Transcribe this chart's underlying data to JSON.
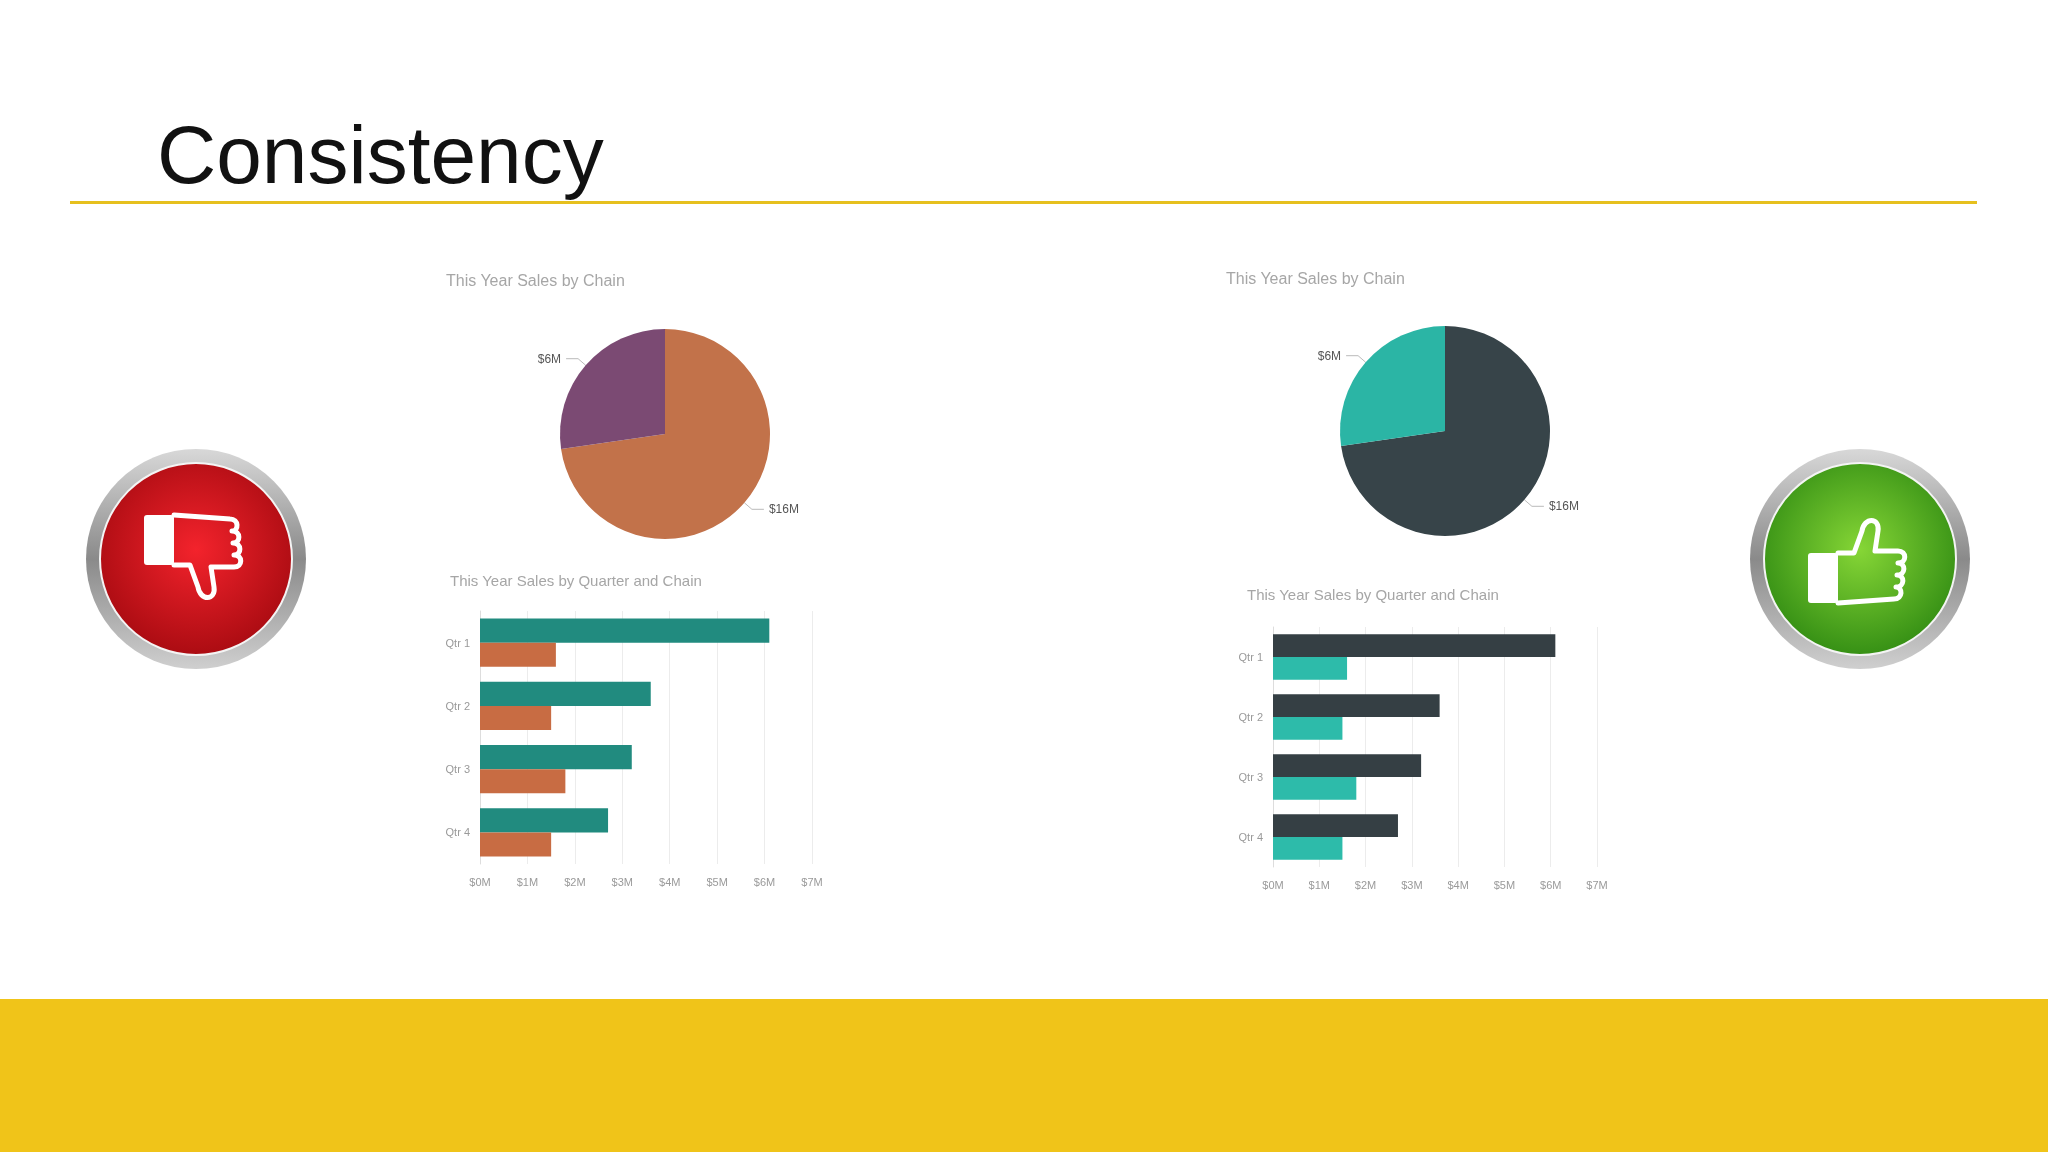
{
  "chart_data": [
    {
      "type": "other",
      "title": "Consistency"
    },
    {
      "type": "pie",
      "title": "This Year Sales by Chain",
      "categories": [
        null,
        null
      ],
      "values": [
        16,
        6
      ],
      "colors": [
        "#c2724a",
        "#7b4a73"
      ],
      "value_labels": [
        "$16M",
        "$6M"
      ]
    },
    {
      "type": "bar",
      "orientation": "horizontal",
      "title": "This Year Sales by Quarter and Chain",
      "categories": [
        "Qtr 1",
        "Qtr 2",
        "Qtr 3",
        "Qtr 4"
      ],
      "series": [
        {
          "color": "#218b7f",
          "values": [
            6.1,
            3.6,
            3.2,
            2.7
          ]
        },
        {
          "color": "#c86c43",
          "values": [
            1.6,
            1.5,
            1.8,
            1.5
          ]
        }
      ],
      "xlim": [
        0,
        7
      ],
      "xticks": [
        {
          "value": 0,
          "label": "$0M"
        },
        {
          "value": 1,
          "label": "$1M"
        },
        {
          "value": 2,
          "label": "$2M"
        },
        {
          "value": 3,
          "label": "$3M"
        },
        {
          "value": 4,
          "label": "$4M"
        },
        {
          "value": 5,
          "label": "$5M"
        },
        {
          "value": 6,
          "label": "$6M"
        },
        {
          "value": 7,
          "label": "$7M"
        }
      ],
      "grid": "x"
    },
    {
      "type": "pie",
      "title": "This Year Sales by Chain",
      "categories": [
        null,
        null
      ],
      "values": [
        16,
        6
      ],
      "colors": [
        "#374449",
        "#2bb5a5"
      ],
      "value_labels": [
        "$16M",
        "$6M"
      ]
    },
    {
      "type": "bar",
      "orientation": "horizontal",
      "title": "This Year Sales by Quarter and Chain",
      "categories": [
        "Qtr 1",
        "Qtr 2",
        "Qtr 3",
        "Qtr 4"
      ],
      "series": [
        {
          "color": "#353f44",
          "values": [
            6.1,
            3.6,
            3.2,
            2.7
          ]
        },
        {
          "color": "#2dbbaa",
          "values": [
            1.6,
            1.5,
            1.8,
            1.5
          ]
        }
      ],
      "xlim": [
        0,
        7
      ],
      "xticks": [
        {
          "value": 0,
          "label": "$0M"
        },
        {
          "value": 1,
          "label": "$1M"
        },
        {
          "value": 2,
          "label": "$2M"
        },
        {
          "value": 3,
          "label": "$3M"
        },
        {
          "value": 4,
          "label": "$4M"
        },
        {
          "value": 5,
          "label": "$5M"
        },
        {
          "value": 6,
          "label": "$6M"
        },
        {
          "value": 7,
          "label": "$7M"
        }
      ],
      "grid": "x"
    }
  ]
}
